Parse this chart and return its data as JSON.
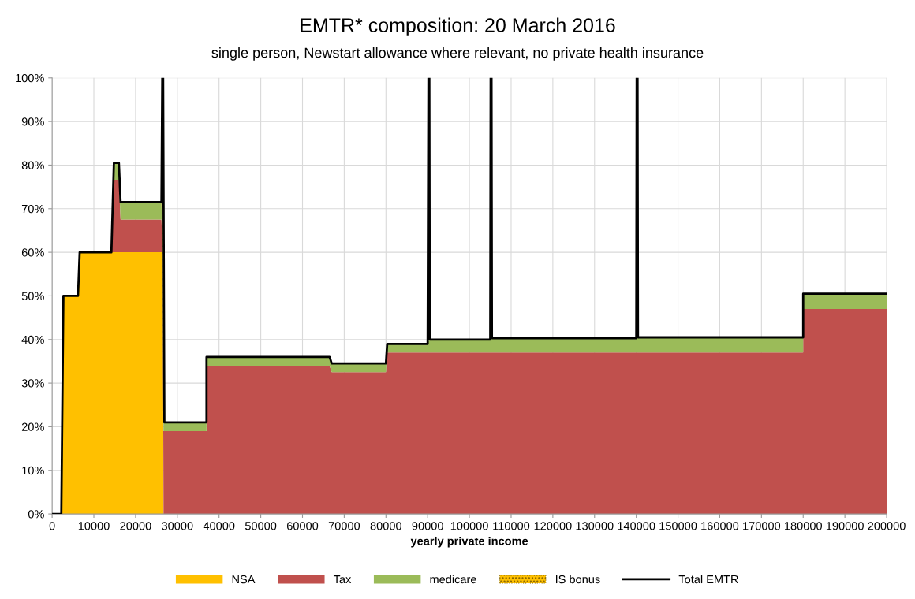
{
  "chart_data": {
    "type": "area",
    "stacked": true,
    "title": "EMTR* composition: 20 March 2016",
    "subtitle": "single person, Newstart allowance where relevant, no private health insurance",
    "xlabel": "yearly private income",
    "x": [
      0,
      2200,
      2700,
      6200,
      6600,
      14200,
      14800,
      16000,
      16400,
      26200,
      26500,
      26700,
      37000,
      37000,
      66500,
      67000,
      80000,
      80300,
      90000,
      90300,
      105000,
      105300,
      140000,
      140300,
      180000,
      180000,
      200000
    ],
    "series": [
      {
        "name": "NSA",
        "color": "#ffc000",
        "values": [
          0,
          0,
          50,
          50,
          60,
          60,
          60,
          60,
          60,
          60,
          60,
          0,
          0,
          0,
          0,
          0,
          0,
          0,
          0,
          0,
          0,
          0,
          0,
          0,
          0,
          0,
          0
        ]
      },
      {
        "name": "Tax",
        "color": "#c0504d",
        "values": [
          0,
          0,
          0,
          0,
          0,
          0,
          16.5,
          16.5,
          7.5,
          7.5,
          0,
          19,
          19,
          34,
          34,
          32.5,
          32.5,
          37,
          37,
          37,
          37,
          37,
          37,
          37,
          37,
          47,
          47
        ]
      },
      {
        "name": "medicare",
        "color": "#9bbb59",
        "values": [
          0,
          0,
          0,
          0,
          0,
          0,
          4,
          4,
          4,
          4,
          0,
          2,
          2,
          2,
          2,
          2,
          2,
          2,
          2,
          3,
          3,
          3.3,
          3.3,
          3.5,
          3.5,
          3.5,
          3.5
        ]
      },
      {
        "name": "IS bonus",
        "color": "#ffc000",
        "line_style": "dotted",
        "values": [
          0,
          0,
          0,
          0,
          0,
          0,
          0,
          0,
          0,
          0,
          30,
          0,
          0,
          0,
          0,
          0,
          0,
          0,
          0,
          0,
          0,
          0,
          0,
          0,
          0,
          0,
          0
        ]
      },
      {
        "name": "Total EMTR",
        "type": "line",
        "color": "#000000",
        "x": [
          0,
          2200,
          2700,
          6200,
          6600,
          14200,
          14800,
          16000,
          16400,
          26200,
          26400,
          26600,
          26900,
          37000,
          37000,
          66500,
          67000,
          80000,
          80300,
          90000,
          90200,
          90400,
          90500,
          105000,
          105100,
          105300,
          105400,
          140000,
          140100,
          140300,
          140400,
          180000,
          180000,
          200000
        ],
        "values": [
          0,
          0,
          50,
          50,
          60,
          60,
          80.5,
          80.5,
          71.5,
          71.5,
          100,
          100,
          21,
          21,
          36,
          36,
          34.5,
          34.5,
          39,
          39,
          100,
          100,
          40,
          40,
          100,
          100,
          40.3,
          40.3,
          100,
          100,
          40.5,
          40.5,
          50.5,
          50.5
        ]
      }
    ],
    "xlim": [
      0,
      200000
    ],
    "xticks": [
      0,
      10000,
      20000,
      30000,
      40000,
      50000,
      60000,
      70000,
      80000,
      90000,
      100000,
      110000,
      120000,
      130000,
      140000,
      150000,
      160000,
      170000,
      180000,
      190000,
      200000
    ],
    "ylim": [
      0,
      100
    ],
    "yticks": [
      {
        "value": 0,
        "label": "0%"
      },
      {
        "value": 10,
        "label": "10%"
      },
      {
        "value": 20,
        "label": "20%"
      },
      {
        "value": 30,
        "label": "30%"
      },
      {
        "value": 40,
        "label": "40%"
      },
      {
        "value": 50,
        "label": "50%"
      },
      {
        "value": 60,
        "label": "60%"
      },
      {
        "value": 70,
        "label": "70%"
      },
      {
        "value": 80,
        "label": "80%"
      },
      {
        "value": 90,
        "label": "90%"
      },
      {
        "value": 100,
        "label": "100%"
      }
    ],
    "grid": true,
    "legend": "bottom"
  }
}
